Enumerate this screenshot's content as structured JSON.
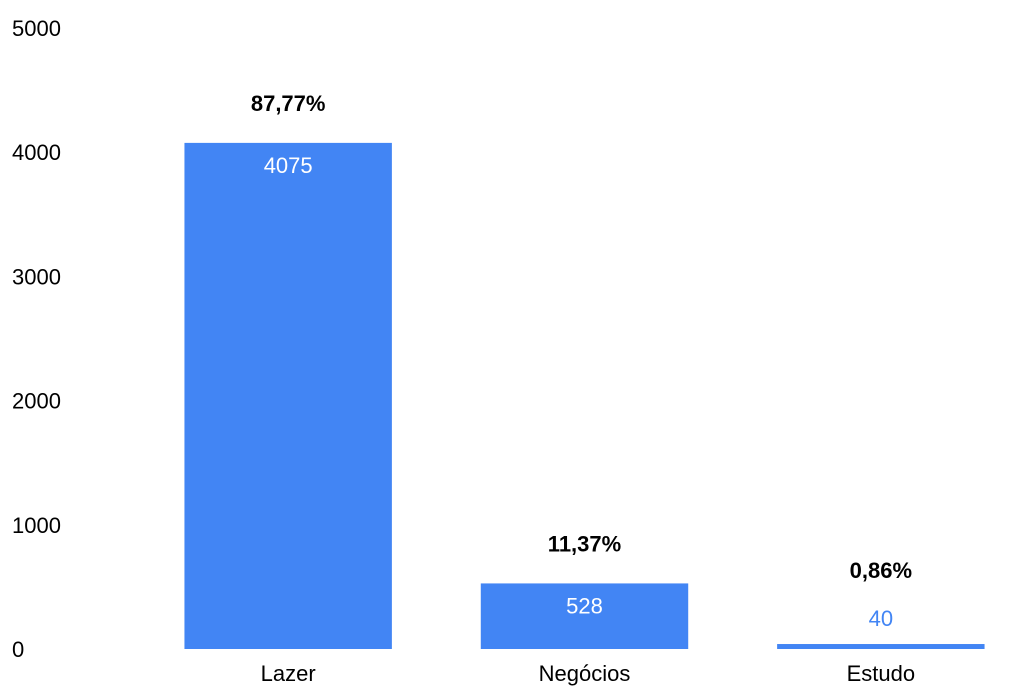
{
  "chart_data": {
    "type": "bar",
    "title": "",
    "xlabel": "",
    "ylabel": "",
    "categories": [
      "Lazer",
      "Negócios",
      "Estudo"
    ],
    "values": [
      4075,
      528,
      40
    ],
    "percent_labels": [
      "87,77%",
      "11,37%",
      "0,86%"
    ],
    "value_labels": [
      "4075",
      "528",
      "40"
    ],
    "ylim": [
      0,
      5000
    ],
    "yticks": [
      "0",
      "1000",
      "2000",
      "3000",
      "4000",
      "5000"
    ],
    "grid": false,
    "legend": "none",
    "bar_color": "#4285f4",
    "inside_label_color": "#ffffff",
    "outside_label_color": "#4285f4",
    "percent_label_color": "#000000"
  }
}
